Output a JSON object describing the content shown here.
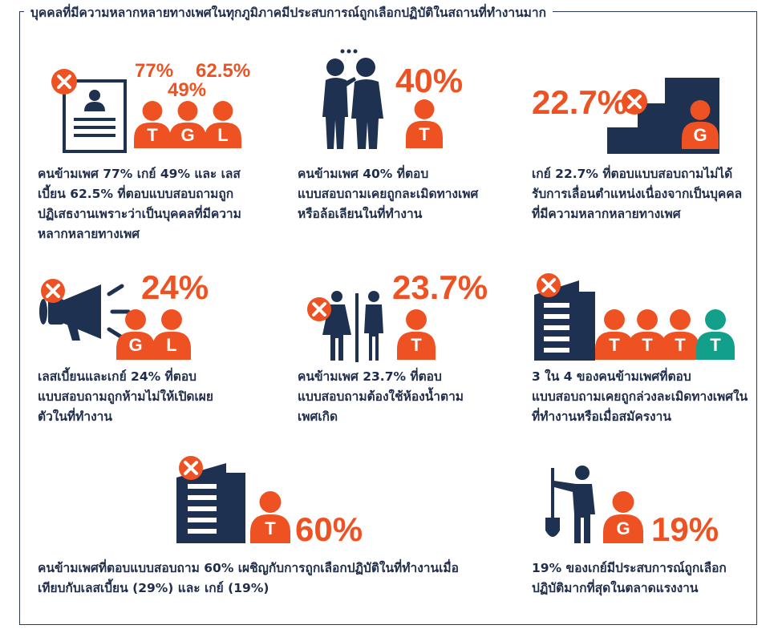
{
  "header": {
    "title": "บุคคลที่มีความหลากหลายทางเพศในทุกภูมิภาคมีประสบการณ์ถูกเลือกปฏิบัติในสถานที่ทำงานมาก"
  },
  "colors": {
    "accent": "#ef5222",
    "navy": "#1f3150",
    "teal": "#12a08a",
    "text": "#1f2d4a"
  },
  "stats": [
    {
      "id": "rejected",
      "icon": "resume-rejected-icon",
      "figures": [
        {
          "pct": "77%",
          "letter": "T"
        },
        {
          "pct": "49%",
          "letter": "G"
        },
        {
          "pct": "62.5%",
          "letter": "L"
        }
      ],
      "text": "คนข้ามเพศ 77% เกย์ 49% และ เลสเบี้ยน 62.5% ที่ตอบแบบสอบถามถูกปฏิเสธงานเพราะว่าเป็นบุคคลที่มีความหลากหลายทางเพศ"
    },
    {
      "id": "harassed",
      "icon": "whispering-people-icon",
      "figures": [
        {
          "pct": "40%",
          "letter": "T"
        }
      ],
      "text": "คนข้ามเพศ 40% ที่ตอบแบบสอบถามเคยถูกละเมิดทางเพศหรือล้อเลียนในที่ทำงาน"
    },
    {
      "id": "promotion",
      "icon": "blocked-stairs-icon",
      "figures": [
        {
          "pct": "22.7%",
          "letter": "G"
        }
      ],
      "text": "เกย์ 22.7% ที่ตอบแบบสอบถามไม่ได้รับการเลื่อนตำแหน่งเนื่องจากเป็นบุคคลที่มีความหลากหลายทางเพศ"
    },
    {
      "id": "disclosure",
      "icon": "muted-megaphone-icon",
      "figures": [
        {
          "pct": "24%",
          "letter": "G"
        },
        {
          "pct": "24%",
          "letter": "L"
        }
      ],
      "pct_label": "24%",
      "text": "เลสเบี้ยนและเกย์ 24% ที่ตอบแบบสอบถามถูกห้ามไม่ให้เปิดเผยตัวในที่ทำงาน"
    },
    {
      "id": "restroom",
      "icon": "restroom-icon",
      "figures": [
        {
          "pct": "23.7%",
          "letter": "T"
        }
      ],
      "text": "คนข้ามเพศ 23.7% ที่ตอบแบบสอบถามต้องใช้ห้องน้ำตามเพศเกิด"
    },
    {
      "id": "abused",
      "icon": "office-building-icon",
      "figures": [
        {
          "letter": "T"
        },
        {
          "letter": "T"
        },
        {
          "letter": "T"
        },
        {
          "letter": "T"
        }
      ],
      "text": "3 ใน 4 ของคนข้ามเพศที่ตอบแบบสอบถามเคยถูกล่วงละเมิดทางเพศในที่ทำงานหรือเมื่อสมัครงาน"
    },
    {
      "id": "discrimination",
      "icon": "office-building-icon",
      "figures": [
        {
          "pct": "60%",
          "letter": "T"
        }
      ],
      "text": "คนข้ามเพศที่ตอบแบบสอบถาม 60% เผชิญกับการถูกเลือกปฏิบัติในที่ทำงานเมื่อเทียบกับเลสเบี้ยน (29%) และ เกย์ (19%)"
    },
    {
      "id": "labor",
      "icon": "worker-shovel-icon",
      "figures": [
        {
          "pct": "19%",
          "letter": "G"
        }
      ],
      "text": "19% ของเกย์มีประสบการณ์ถูกเลือกปฏิบัติมากที่สุดในตลาดแรงงาน"
    }
  ]
}
